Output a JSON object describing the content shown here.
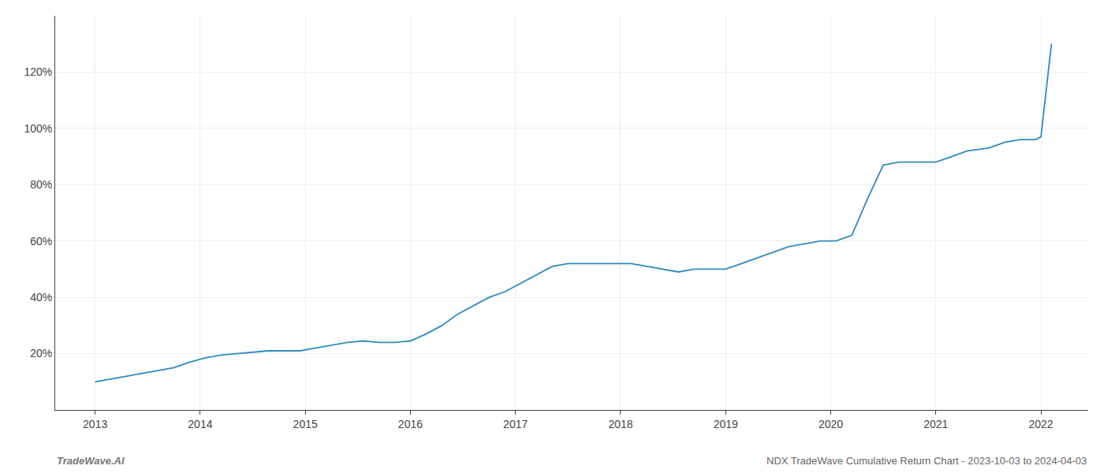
{
  "chart_data": {
    "type": "line",
    "title": "NDX TradeWave Cumulative Return Chart - 2023-10-03 to 2024-04-03",
    "annotations": [
      "TradeWave.AI"
    ],
    "x": [
      2013.0,
      2013.15,
      2013.3,
      2013.45,
      2013.6,
      2013.75,
      2013.9,
      2014.05,
      2014.2,
      2014.35,
      2014.5,
      2014.65,
      2014.8,
      2014.95,
      2015.1,
      2015.25,
      2015.4,
      2015.55,
      2015.7,
      2015.85,
      2016.0,
      2016.15,
      2016.3,
      2016.45,
      2016.6,
      2016.75,
      2016.9,
      2017.05,
      2017.2,
      2017.35,
      2017.5,
      2017.65,
      2017.8,
      2017.95,
      2018.1,
      2018.25,
      2018.4,
      2018.55,
      2018.7,
      2018.85,
      2019.0,
      2019.15,
      2019.3,
      2019.45,
      2019.6,
      2019.75,
      2019.9,
      2020.05,
      2020.2,
      2020.35,
      2020.5,
      2020.65,
      2020.8,
      2021.0,
      2021.15,
      2021.3,
      2021.5,
      2021.65,
      2021.8,
      2021.95,
      2022.0,
      2022.1
    ],
    "values": [
      10,
      11,
      12,
      13,
      14,
      15,
      17,
      18.5,
      19.5,
      20,
      20.5,
      21,
      21,
      21,
      22,
      23,
      24,
      24.5,
      24,
      24,
      24.5,
      27,
      30,
      34,
      37,
      40,
      42,
      45,
      48,
      51,
      52,
      52,
      52,
      52,
      52,
      51,
      50,
      49,
      50,
      50,
      50,
      52,
      54,
      56,
      58,
      59,
      60,
      60,
      62,
      75,
      87,
      88,
      88,
      88,
      90,
      92,
      93,
      95,
      96,
      96,
      97,
      130
    ],
    "color": "#2e8bc0",
    "xlim": [
      2012.62,
      2022.45
    ],
    "xticks": [
      2013,
      2014,
      2015,
      2016,
      2017,
      2018,
      2019,
      2020,
      2021,
      2022
    ],
    "ylim": [
      0,
      140
    ],
    "yticks": [
      {
        "value": 20,
        "label": "20%"
      },
      {
        "value": 40,
        "label": "40%"
      },
      {
        "value": 60,
        "label": "60%"
      },
      {
        "value": 80,
        "label": "80%"
      },
      {
        "value": 100,
        "label": "100%"
      },
      {
        "value": 120,
        "label": "120%"
      }
    ],
    "grid": true
  }
}
